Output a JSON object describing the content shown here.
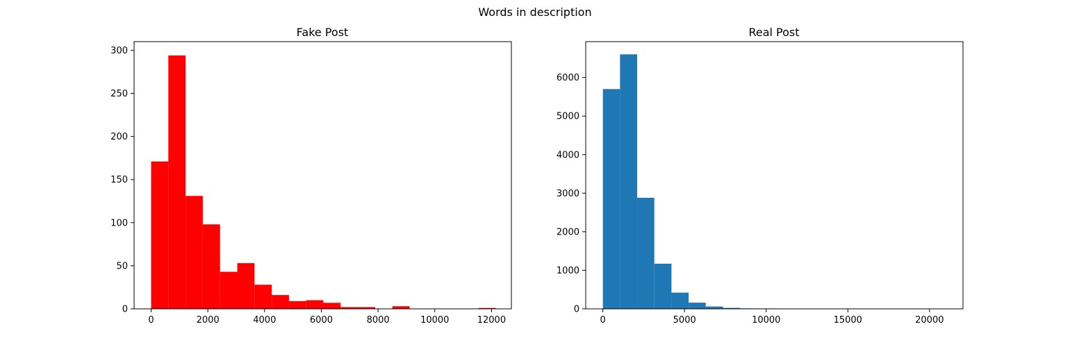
{
  "figure": {
    "suptitle": "Words in description"
  },
  "chart_data": [
    {
      "type": "bar",
      "title": "Fake Post",
      "xlabel": "",
      "ylabel": "",
      "color": "#ff0000",
      "xlim": [
        -600,
        12700
      ],
      "ylim": [
        0,
        310
      ],
      "xticks": [
        0,
        2000,
        4000,
        6000,
        8000,
        10000,
        12000
      ],
      "yticks": [
        0,
        50,
        100,
        150,
        200,
        250,
        300
      ],
      "bin_edges": [
        0,
        607.5,
        1215,
        1822.5,
        2430,
        3037.5,
        3645,
        4252.5,
        4860,
        5467.5,
        6075,
        6682.5,
        7290,
        7897.5,
        8505,
        9112.5,
        9720,
        10327.5,
        10935,
        11542.5,
        12150
      ],
      "values": [
        171,
        294,
        131,
        98,
        43,
        53,
        28,
        16,
        9,
        10,
        7,
        2,
        2,
        0,
        3,
        0,
        0,
        0,
        0,
        1
      ],
      "grid": false
    },
    {
      "type": "bar",
      "title": "Real Post",
      "xlabel": "",
      "ylabel": "",
      "color": "#1f77b4",
      "xlim": [
        -1050,
        22050
      ],
      "ylim": [
        0,
        6930
      ],
      "xticks": [
        0,
        5000,
        10000,
        15000,
        20000
      ],
      "yticks": [
        0,
        1000,
        2000,
        3000,
        4000,
        5000,
        6000
      ],
      "bin_edges": [
        0,
        1050,
        2100,
        3150,
        4200,
        5250,
        6300,
        7350,
        8400,
        9450,
        10500,
        11550,
        12600,
        13650,
        14700,
        15750,
        16800,
        17850,
        18900,
        19950,
        21000
      ],
      "values": [
        5700,
        6600,
        2880,
        1170,
        420,
        160,
        60,
        25,
        12,
        10,
        5,
        3,
        2,
        1,
        1,
        1,
        0,
        0,
        0,
        1
      ],
      "grid": false
    }
  ]
}
